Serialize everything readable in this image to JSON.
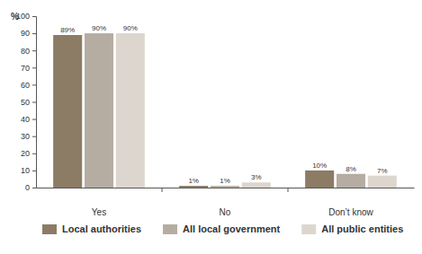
{
  "chart_data": {
    "type": "bar",
    "y_label": "%",
    "categories": [
      "Yes",
      "No",
      "Don’t know"
    ],
    "series": [
      {
        "name": "Local authorities",
        "color": "#8c7b65",
        "values": [
          89,
          1,
          10
        ],
        "value_labels": [
          "89%",
          "1%",
          "10%"
        ]
      },
      {
        "name": "All local government",
        "color": "#b5ada1",
        "values": [
          90,
          1,
          8
        ],
        "value_labels": [
          "90%",
          "1%",
          "8%"
        ]
      },
      {
        "name": "All public entities",
        "color": "#ddd6ce",
        "values": [
          90,
          3,
          7
        ],
        "value_labels": [
          "90%",
          "3%",
          "7%"
        ]
      }
    ],
    "ylim": [
      0,
      100
    ],
    "yticks": [
      0,
      10,
      20,
      30,
      40,
      50,
      60,
      70,
      80,
      90,
      100
    ],
    "grid": false,
    "legend": "bottom",
    "data_labels": true
  }
}
